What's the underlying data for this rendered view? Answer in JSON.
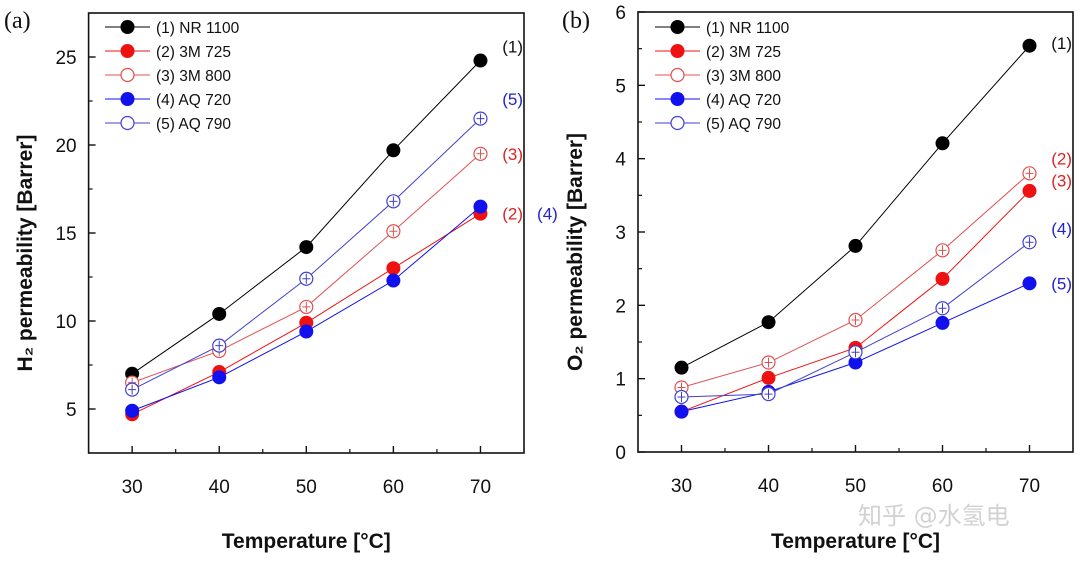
{
  "chart_data": [
    {
      "type": "line",
      "panel_label": "(a)",
      "xlabel": "Temperature [°C]",
      "ylabel": "H₂ permeability [Barrer]",
      "xlim": [
        25,
        75
      ],
      "ylim": [
        2.5,
        27.5
      ],
      "xticks": [
        30,
        40,
        50,
        60,
        70
      ],
      "yticks": [
        5,
        10,
        15,
        20,
        25
      ],
      "grid": false,
      "legend_position": "top-left",
      "x": [
        30,
        40,
        50,
        60,
        70
      ],
      "series": [
        {
          "name": "(1) NR 1100",
          "color": "#000000",
          "filled": true,
          "values": [
            7.0,
            10.4,
            14.2,
            19.7,
            24.8
          ]
        },
        {
          "name": "(2) 3M 725",
          "color": "#ee1111",
          "filled": true,
          "values": [
            4.7,
            7.1,
            9.9,
            13.0,
            16.1
          ]
        },
        {
          "name": "(3) 3M 800",
          "color": "#e05050",
          "filled": false,
          "values": [
            6.5,
            8.3,
            10.8,
            15.1,
            19.5
          ]
        },
        {
          "name": "(4) AQ 720",
          "color": "#1111ee",
          "filled": true,
          "values": [
            4.9,
            6.8,
            9.4,
            12.3,
            16.5
          ]
        },
        {
          "name": "(5) AQ 790",
          "color": "#4040d0",
          "filled": false,
          "values": [
            6.1,
            8.6,
            12.4,
            16.8,
            21.5
          ]
        }
      ],
      "annotations": [
        {
          "text": "(1)",
          "color": "#111111",
          "x": 72.5,
          "y": 25.6
        },
        {
          "text": "(5)",
          "color": "#2222cc",
          "x": 72.5,
          "y": 22.6
        },
        {
          "text": "(3)",
          "color": "#dd2222",
          "x": 72.5,
          "y": 19.5
        },
        {
          "text": "(2)",
          "color": "#dd2222",
          "x": 72.5,
          "y": 16.1
        },
        {
          "text": "(4)",
          "color": "#2222cc",
          "x": 76.5,
          "y": 16.1
        }
      ]
    },
    {
      "type": "line",
      "panel_label": "(b)",
      "xlabel": "Temperature [°C]",
      "ylabel": "O₂ permeability [Barrer]",
      "xlim": [
        25,
        75
      ],
      "ylim": [
        0,
        6
      ],
      "xticks": [
        30,
        40,
        50,
        60,
        70
      ],
      "yticks": [
        0,
        1,
        2,
        3,
        4,
        5,
        6
      ],
      "grid": false,
      "legend_position": "top-left",
      "x": [
        30,
        40,
        50,
        60,
        70
      ],
      "series": [
        {
          "name": "(1) NR 1100",
          "color": "#000000",
          "filled": true,
          "values": [
            1.15,
            1.77,
            2.81,
            4.21,
            5.54
          ]
        },
        {
          "name": "(2) 3M 725",
          "color": "#ee1111",
          "filled": true,
          "values": [
            0.55,
            1.01,
            1.42,
            2.36,
            3.56
          ]
        },
        {
          "name": "(3) 3M 800",
          "color": "#e05050",
          "filled": false,
          "values": [
            0.88,
            1.22,
            1.8,
            2.75,
            3.8
          ]
        },
        {
          "name": "(4) AQ 720",
          "color": "#1111ee",
          "filled": true,
          "values": [
            0.55,
            0.82,
            1.22,
            1.76,
            2.3
          ]
        },
        {
          "name": "(5) AQ 790",
          "color": "#4040d0",
          "filled": false,
          "values": [
            0.75,
            0.79,
            1.36,
            1.96,
            2.86
          ]
        }
      ],
      "annotations": [
        {
          "text": "(1)",
          "color": "#111111",
          "x": 72.5,
          "y": 5.58
        },
        {
          "text": "(2)",
          "color": "#dd2222",
          "x": 72.5,
          "y": 4.0
        },
        {
          "text": "(3)",
          "color": "#dd2222",
          "x": 72.5,
          "y": 3.7
        },
        {
          "text": "(4)",
          "color": "#2222cc",
          "x": 72.5,
          "y": 3.05
        },
        {
          "text": "(5)",
          "color": "#2222cc",
          "x": 72.5,
          "y": 2.3
        }
      ]
    }
  ],
  "watermark": "知乎 @水氢电"
}
